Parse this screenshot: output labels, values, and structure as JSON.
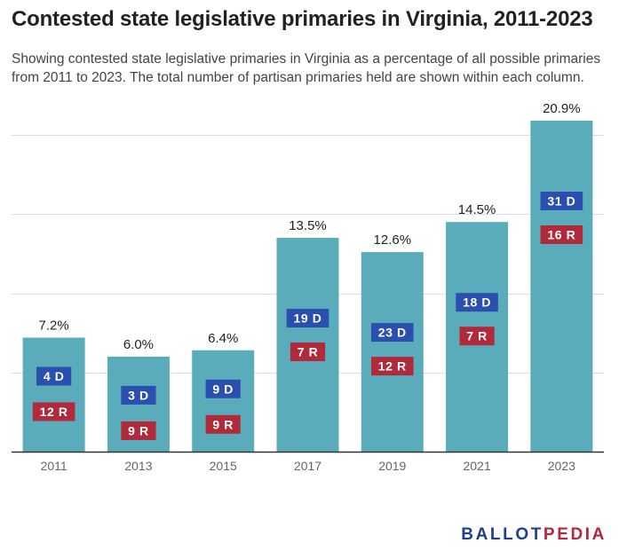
{
  "title": "Contested state legislative primaries in Virginia, 2011-2023",
  "subtitle": "Showing contested state legislative primaries in Virginia as a percentage of all possible primaries from 2011 to 2023. The total number of partisan primaries held are shown within each column.",
  "logo": {
    "part1": "BALLOT",
    "part2": "PEDIA"
  },
  "colors": {
    "bar": "#5aacba",
    "dem": "#2b4fae",
    "rep": "#b02a3c",
    "grid": "#dddddd",
    "axis": "#333333",
    "tick": "#666666"
  },
  "chart_data": {
    "type": "bar",
    "title": "Contested state legislative primaries in Virginia, 2011-2023",
    "xlabel": "",
    "ylabel": "",
    "ylim": [
      0,
      21
    ],
    "gridlines": [
      0,
      5,
      10,
      15,
      20
    ],
    "categories": [
      "2011",
      "2013",
      "2015",
      "2017",
      "2019",
      "2021",
      "2023"
    ],
    "values": [
      7.2,
      6.0,
      6.4,
      13.5,
      12.6,
      14.5,
      20.9
    ],
    "value_labels": [
      "7.2%",
      "6.0%",
      "6.4%",
      "13.5%",
      "12.6%",
      "14.5%",
      "20.9%"
    ],
    "dem_labels": [
      "4 D",
      "3 D",
      "9 D",
      "19 D",
      "23 D",
      "18 D",
      "31 D"
    ],
    "rep_labels": [
      "12 R",
      "9 R",
      "9 R",
      "7 R",
      "12 R",
      "7 R",
      "16 R"
    ]
  }
}
